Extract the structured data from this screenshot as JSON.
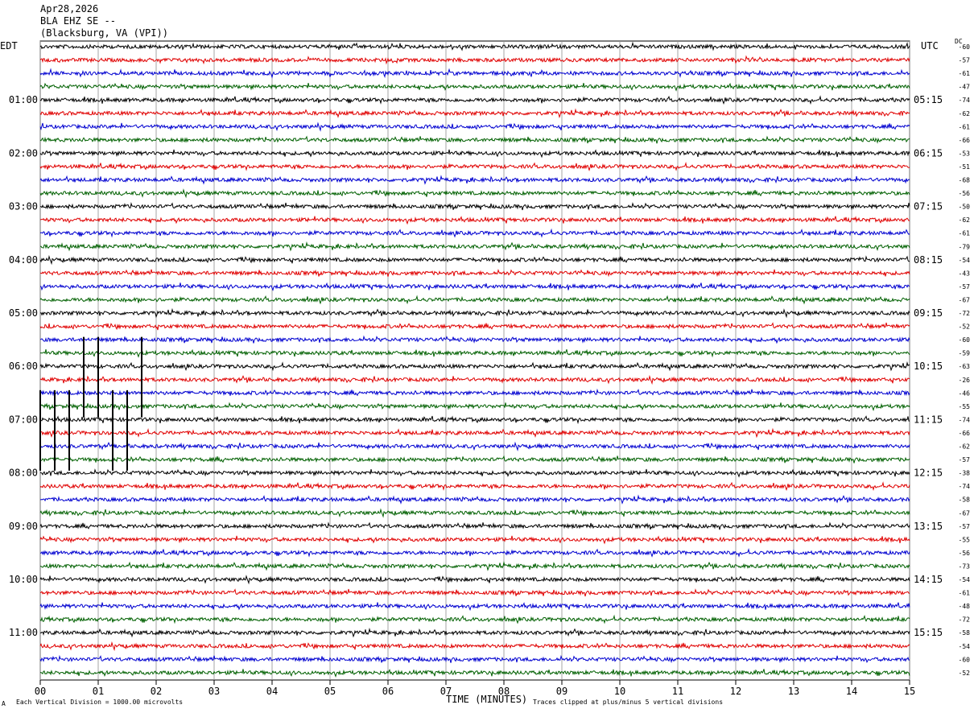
{
  "header": {
    "date": "Apr28,2026",
    "station": "BLA EHZ SE --",
    "location": "(Blacksburg, VA (VPI))",
    "left_tz": "EDT",
    "right_tz": "UTC",
    "dc_label": "DC"
  },
  "footer": {
    "scale_note": "Each Vertical Division = 1000.00 microvolts",
    "xlabel": "TIME (MINUTES)",
    "clip_note": "Traces clipped at plus/minus 5 vertical divisions",
    "corner_mark": "A"
  },
  "chart_data": {
    "type": "line",
    "title": "BLA EHZ SE --",
    "xlabel": "TIME (MINUTES)",
    "ylabel": "",
    "xlim": [
      0,
      15
    ],
    "x_ticks": [
      "00",
      "01",
      "02",
      "03",
      "04",
      "05",
      "06",
      "07",
      "08",
      "09",
      "10",
      "11",
      "12",
      "13",
      "14",
      "15"
    ],
    "trace_colors": [
      "#000000",
      "#e00000",
      "#0000d0",
      "#006000"
    ],
    "left_hour_labels": [
      "01:00",
      "02:00",
      "03:00",
      "04:00",
      "05:00",
      "06:00",
      "07:00",
      "08:00",
      "09:00",
      "10:00",
      "11:00"
    ],
    "right_hour_labels": [
      "05:15",
      "06:15",
      "07:15",
      "08:15",
      "09:15",
      "10:15",
      "11:15",
      "12:15",
      "13:15",
      "14:15",
      "15:15"
    ],
    "dc_offsets": [
      -60,
      -57,
      -61,
      -47,
      -74,
      -62,
      -61,
      -66,
      -53,
      -51,
      -68,
      -56,
      -50,
      -62,
      -61,
      -79,
      -54,
      -43,
      -57,
      -67,
      -72,
      -52,
      -60,
      -59,
      -63,
      -26,
      -46,
      -55,
      -74,
      -66,
      -62,
      -57,
      -38,
      -74,
      -58,
      -67,
      -57,
      -55,
      -56,
      -73,
      -54,
      -61,
      -48,
      -72,
      -58,
      -54,
      -60,
      -52
    ],
    "spikes": [
      {
        "trace": 23,
        "minute": 0.75
      },
      {
        "trace": 23,
        "minute": 1.0
      },
      {
        "trace": 23,
        "minute": 1.75
      },
      {
        "trace": 27,
        "minute": 0.25
      },
      {
        "trace": 27,
        "minute": 0.5
      },
      {
        "trace": 27,
        "minute": 1.25
      },
      {
        "trace": 27,
        "minute": 1.5
      },
      {
        "trace": 27,
        "minute": 0.0
      }
    ]
  }
}
